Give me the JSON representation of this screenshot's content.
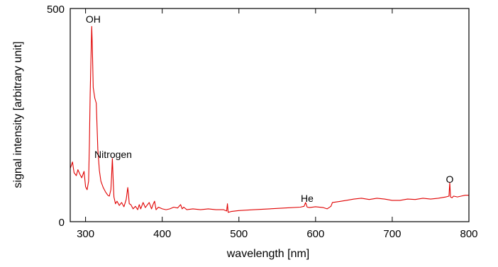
{
  "chart_data": {
    "type": "line",
    "xlabel": "wavelength [nm]",
    "ylabel": "signal intensity [arbitrary unit]",
    "xlim": [
      280,
      800
    ],
    "ylim": [
      0,
      500
    ],
    "x_ticks": [
      300,
      400,
      500,
      600,
      700,
      800
    ],
    "y_ticks": [
      0,
      500
    ],
    "grid": false,
    "line_color": "#e00000",
    "series": [
      {
        "x": [
          280,
          283,
          285,
          288,
          290,
          293,
          295,
          298,
          300,
          302,
          304,
          305,
          306,
          307,
          308,
          309,
          310,
          312,
          314,
          316,
          318,
          320,
          323,
          326,
          329,
          331,
          333,
          334,
          335,
          336,
          337,
          339,
          341,
          344,
          347,
          350,
          353,
          355,
          356,
          357,
          359,
          362,
          365,
          368,
          370,
          372,
          375,
          378,
          380,
          383,
          386,
          388,
          390,
          392,
          395,
          400,
          405,
          410,
          415,
          420,
          424,
          426,
          428,
          432,
          440,
          450,
          460,
          470,
          480,
          484,
          485,
          486,
          490,
          500,
          520,
          540,
          560,
          580,
          585,
          587,
          589,
          592,
          600,
          610,
          615,
          620,
          622,
          630,
          640,
          650,
          660,
          670,
          680,
          690,
          700,
          710,
          720,
          730,
          740,
          750,
          760,
          770,
          774,
          775,
          776,
          778,
          780,
          785,
          790,
          795,
          800
        ],
        "y": [
          125,
          140,
          115,
          108,
          122,
          110,
          103,
          118,
          82,
          75,
          95,
          180,
          300,
          380,
          458,
          400,
          315,
          290,
          278,
          170,
          120,
          95,
          80,
          70,
          62,
          60,
          75,
          110,
          148,
          100,
          58,
          42,
          48,
          38,
          45,
          35,
          52,
          80,
          65,
          42,
          40,
          30,
          36,
          28,
          40,
          30,
          45,
          33,
          38,
          45,
          30,
          40,
          48,
          28,
          34,
          30,
          28,
          30,
          34,
          32,
          40,
          30,
          34,
          28,
          30,
          28,
          30,
          28,
          28,
          25,
          42,
          22,
          24,
          26,
          28,
          30,
          32,
          34,
          36,
          45,
          34,
          33,
          35,
          33,
          30,
          36,
          45,
          47,
          50,
          53,
          55,
          52,
          55,
          53,
          50,
          50,
          53,
          52,
          55,
          53,
          55,
          58,
          60,
          92,
          58,
          56,
          60,
          58,
          60,
          62,
          62
        ]
      }
    ],
    "annotations": [
      {
        "text": "OH",
        "x": 310,
        "y": 475
      },
      {
        "text": "Nitrogen",
        "x": 336,
        "y": 158
      },
      {
        "text": "He",
        "x": 589,
        "y": 55
      },
      {
        "text": "O",
        "x": 775,
        "y": 100
      }
    ]
  }
}
